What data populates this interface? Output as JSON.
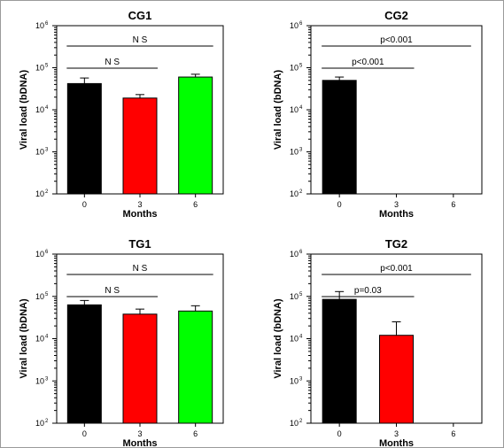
{
  "chart_data": [
    {
      "type": "bar",
      "title": "CG1",
      "xlabel": "Months",
      "ylabel": "Viral load (bDNA)",
      "yscale": "log",
      "ylim": [
        100,
        1000000
      ],
      "yticks": [
        {
          "base": "10",
          "exp": "2"
        },
        {
          "base": "10",
          "exp": "3"
        },
        {
          "base": "10",
          "exp": "4"
        },
        {
          "base": "10",
          "exp": "5"
        },
        {
          "base": "10",
          "exp": "6"
        }
      ],
      "categories": [
        "0",
        "3",
        "6"
      ],
      "values": [
        42000,
        19000,
        60000
      ],
      "errors": [
        57000,
        23000,
        70000
      ],
      "colors": [
        "#000000",
        "#ff0000",
        "#00ff00"
      ],
      "annotations": [
        {
          "label": "N S",
          "from": 0,
          "to": 1
        },
        {
          "label": "N S",
          "from": 0,
          "to": 2
        }
      ]
    },
    {
      "type": "bar",
      "title": "CG2",
      "xlabel": "Months",
      "ylabel": "Viral load (bDNA)",
      "yscale": "log",
      "ylim": [
        100,
        1000000
      ],
      "yticks": [
        {
          "base": "10",
          "exp": "2"
        },
        {
          "base": "10",
          "exp": "3"
        },
        {
          "base": "10",
          "exp": "4"
        },
        {
          "base": "10",
          "exp": "5"
        },
        {
          "base": "10",
          "exp": "6"
        }
      ],
      "categories": [
        "0",
        "3",
        "6"
      ],
      "values": [
        50000,
        null,
        null
      ],
      "errors": [
        60000,
        null,
        null
      ],
      "colors": [
        "#000000",
        "#ff0000",
        "#00ff00"
      ],
      "annotations": [
        {
          "label": "p<0.001",
          "from": 0,
          "to": 1
        },
        {
          "label": "p<0.001",
          "from": 0,
          "to": 2
        }
      ]
    },
    {
      "type": "bar",
      "title": "TG1",
      "xlabel": "Months",
      "ylabel": "Viral load (bDNA)",
      "yscale": "log",
      "ylim": [
        100,
        1000000
      ],
      "yticks": [
        {
          "base": "10",
          "exp": "2"
        },
        {
          "base": "10",
          "exp": "3"
        },
        {
          "base": "10",
          "exp": "4"
        },
        {
          "base": "10",
          "exp": "5"
        },
        {
          "base": "10",
          "exp": "6"
        }
      ],
      "categories": [
        "0",
        "3",
        "6"
      ],
      "values": [
        63000,
        38000,
        45000
      ],
      "errors": [
        80000,
        50000,
        60000
      ],
      "colors": [
        "#000000",
        "#ff0000",
        "#00ff00"
      ],
      "annotations": [
        {
          "label": "N S",
          "from": 0,
          "to": 1
        },
        {
          "label": "N S",
          "from": 0,
          "to": 2
        }
      ]
    },
    {
      "type": "bar",
      "title": "TG2",
      "xlabel": "Months",
      "ylabel": "Viral load (bDNA)",
      "yscale": "log",
      "ylim": [
        100,
        1000000
      ],
      "yticks": [
        {
          "base": "10",
          "exp": "2"
        },
        {
          "base": "10",
          "exp": "3"
        },
        {
          "base": "10",
          "exp": "4"
        },
        {
          "base": "10",
          "exp": "5"
        },
        {
          "base": "10",
          "exp": "6"
        }
      ],
      "categories": [
        "0",
        "3",
        "6"
      ],
      "values": [
        85000,
        12000,
        null
      ],
      "errors": [
        130000,
        25000,
        null
      ],
      "colors": [
        "#000000",
        "#ff0000",
        "#00ff00"
      ],
      "annotations": [
        {
          "label": "p=0.03",
          "from": 0,
          "to": 1
        },
        {
          "label": "p<0.001",
          "from": 0,
          "to": 2
        }
      ]
    }
  ]
}
